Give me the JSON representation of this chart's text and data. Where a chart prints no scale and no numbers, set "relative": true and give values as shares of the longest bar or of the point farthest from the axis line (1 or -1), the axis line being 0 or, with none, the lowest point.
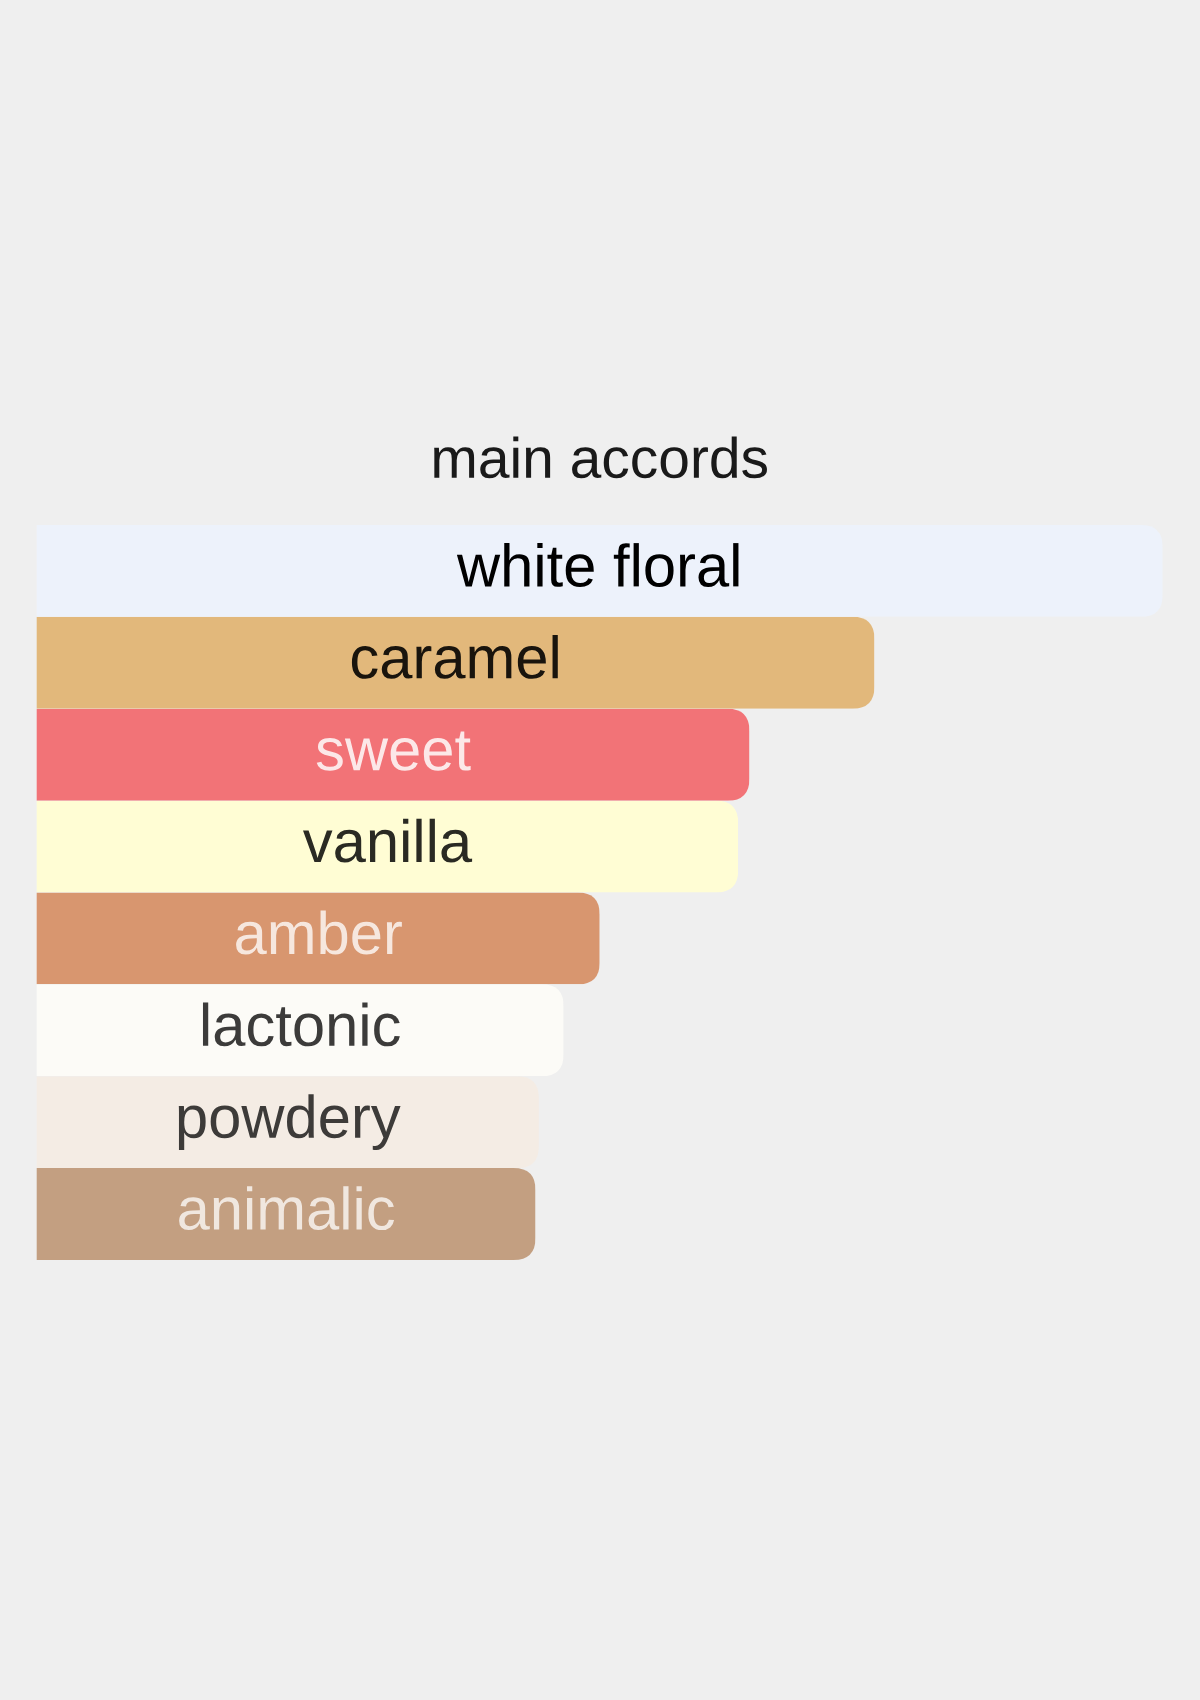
{
  "chart_data": {
    "type": "bar",
    "orientation": "horizontal",
    "relative": true,
    "title": "main accords",
    "categories": [
      "white floral",
      "caramel",
      "sweet",
      "vanilla",
      "amber",
      "lactonic",
      "powdery",
      "animalic"
    ],
    "values": [
      1,
      0.744,
      0.633,
      0.623,
      0.5,
      0.468,
      0.446,
      0.443
    ],
    "colors": [
      "#edf2fb",
      "#e2b87b",
      "#f27377",
      "#fffdd4",
      "#d8966f",
      "#fcfbf7",
      "#f4ece4",
      "#c39f81"
    ]
  }
}
